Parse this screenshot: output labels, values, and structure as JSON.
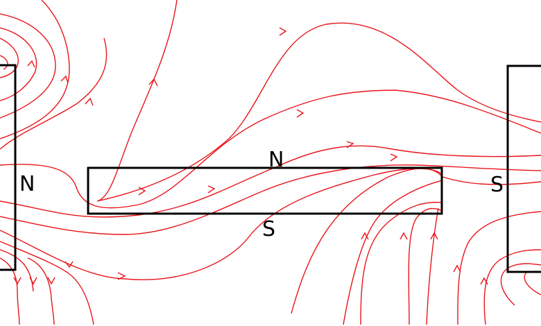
{
  "left_magnet": {
    "label": "N"
  },
  "center_magnet": {
    "top_label": "N",
    "bottom_label": "S"
  },
  "right_magnet": {
    "label": "S"
  }
}
